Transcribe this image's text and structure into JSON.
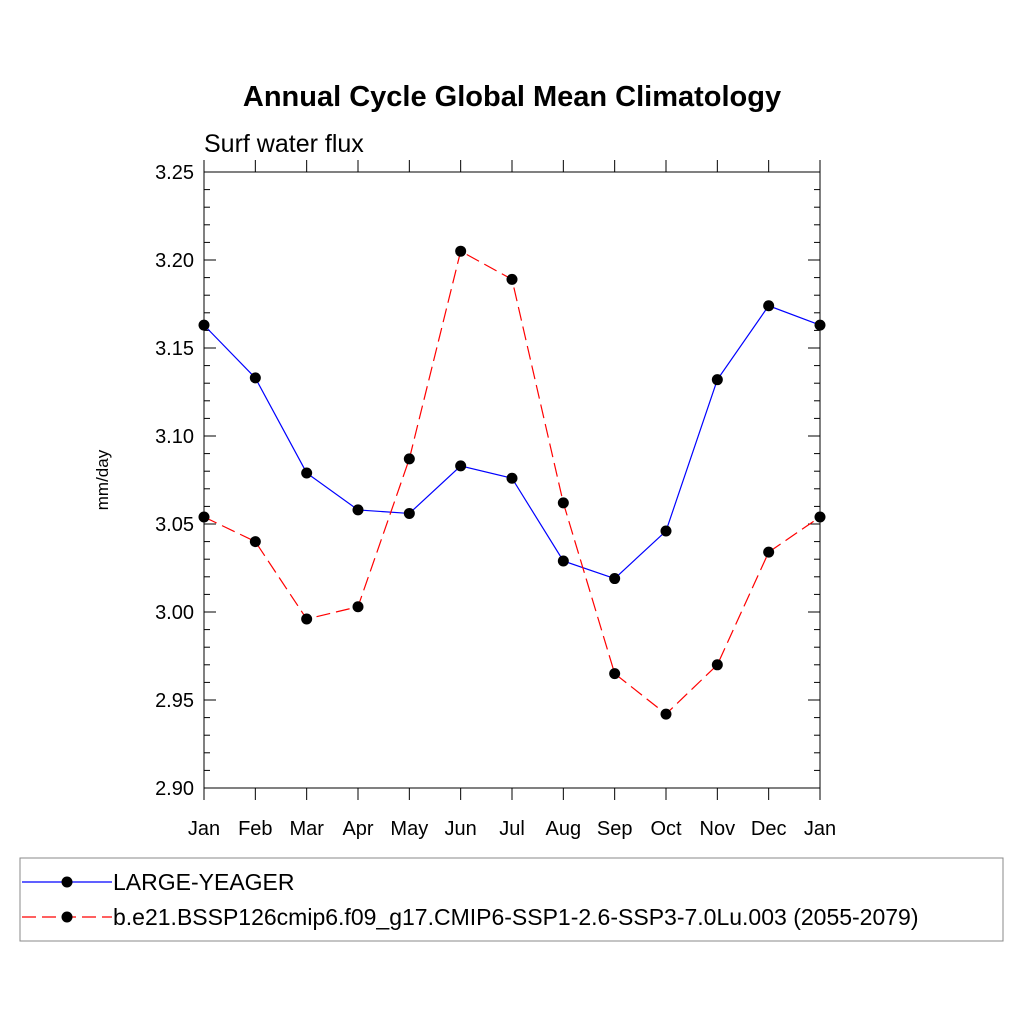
{
  "chart_data": {
    "type": "line",
    "title": "Annual Cycle Global Mean Climatology",
    "subtitle": "Surf water flux",
    "ylabel": "mm/day",
    "xlabel": "",
    "categories": [
      "Jan",
      "Feb",
      "Mar",
      "Apr",
      "May",
      "Jun",
      "Jul",
      "Aug",
      "Sep",
      "Oct",
      "Nov",
      "Dec",
      "Jan"
    ],
    "ylim": [
      2.9,
      3.25
    ],
    "yticks": [
      "2.90",
      "2.95",
      "3.00",
      "3.05",
      "3.10",
      "3.15",
      "3.20",
      "3.25"
    ],
    "series": [
      {
        "name": "LARGE-YEAGER",
        "color": "#0000ff",
        "dash": "solid",
        "values": [
          3.163,
          3.133,
          3.079,
          3.058,
          3.056,
          3.083,
          3.076,
          3.029,
          3.019,
          3.046,
          3.132,
          3.174,
          3.163
        ]
      },
      {
        "name": "b.e21.BSSP126cmip6.f09_g17.CMIP6-SSP1-2.6-SSP3-7.0Lu.003 (2055-2079)",
        "color": "#ff0000",
        "dash": "dashed",
        "values": [
          3.054,
          3.04,
          2.996,
          3.003,
          3.087,
          3.205,
          3.189,
          3.062,
          2.965,
          2.942,
          2.97,
          3.034,
          3.054
        ]
      }
    ],
    "marker": "filled-circle",
    "grid": false,
    "legend": "bottom"
  }
}
